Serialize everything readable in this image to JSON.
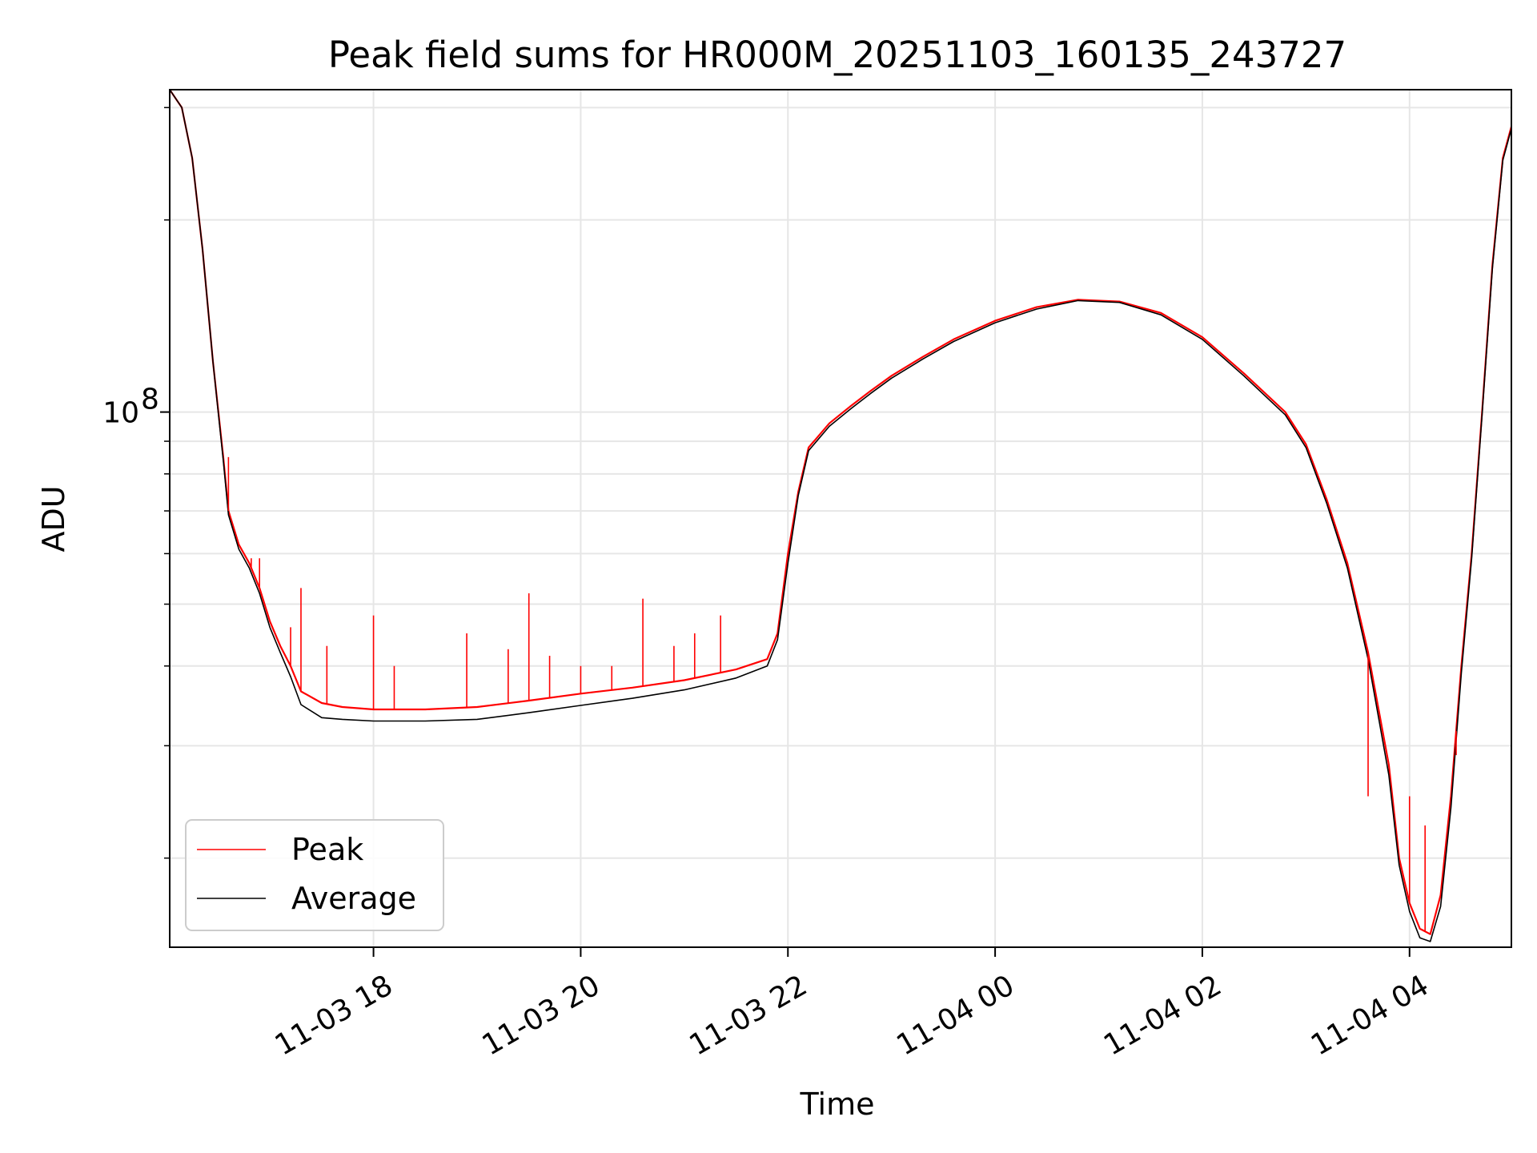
{
  "chart_data": {
    "type": "line",
    "title": "Peak field sums for HR000M_20251103_160135_243727",
    "xlabel": "Time",
    "ylabel": "ADU",
    "y_scale": "log",
    "ylim": [
      14500000,
      320000000
    ],
    "xlim": [
      16.033,
      28.983
    ],
    "x_unit": "hours since 2025-11-03 00:00",
    "x_ticks": [
      {
        "value": 18,
        "label": "11-03 18"
      },
      {
        "value": 20,
        "label": "11-03 20"
      },
      {
        "value": 22,
        "label": "11-03 22"
      },
      {
        "value": 24,
        "label": "11-04 00"
      },
      {
        "value": 26,
        "label": "11-04 02"
      },
      {
        "value": 28,
        "label": "11-04 04"
      }
    ],
    "y_major_tick": {
      "value": 100000000,
      "label_base": "10",
      "label_exp": "8"
    },
    "y_minor_ticks": [
      20000000,
      30000000,
      40000000,
      50000000,
      60000000,
      70000000,
      80000000,
      90000000,
      200000000,
      300000000
    ],
    "grid": true,
    "legend": {
      "position": "lower-left",
      "entries": [
        {
          "name": "Peak",
          "color": "#ff0000"
        },
        {
          "name": "Average",
          "color": "#000000"
        }
      ]
    },
    "series": [
      {
        "name": "Peak",
        "color": "#ff0000",
        "points": [
          [
            16.033,
            320000000
          ],
          [
            16.15,
            300000000
          ],
          [
            16.25,
            250000000
          ],
          [
            16.35,
            180000000
          ],
          [
            16.45,
            120000000
          ],
          [
            16.55,
            85000000
          ],
          [
            16.6,
            70000000
          ],
          [
            16.7,
            62000000
          ],
          [
            16.8,
            58000000
          ],
          [
            16.9,
            53000000
          ],
          [
            17.0,
            47000000
          ],
          [
            17.1,
            43000000
          ],
          [
            17.2,
            40000000
          ],
          [
            17.3,
            36500000
          ],
          [
            17.5,
            35000000
          ],
          [
            17.7,
            34500000
          ],
          [
            18.0,
            34200000
          ],
          [
            18.5,
            34200000
          ],
          [
            19.0,
            34500000
          ],
          [
            19.5,
            35300000
          ],
          [
            20.0,
            36200000
          ],
          [
            20.5,
            37000000
          ],
          [
            21.0,
            38000000
          ],
          [
            21.5,
            39500000
          ],
          [
            21.8,
            41000000
          ],
          [
            21.9,
            45000000
          ],
          [
            22.0,
            60000000
          ],
          [
            22.1,
            75000000
          ],
          [
            22.2,
            88000000
          ],
          [
            22.4,
            96000000
          ],
          [
            22.6,
            102000000
          ],
          [
            22.8,
            108000000
          ],
          [
            23.0,
            114000000
          ],
          [
            23.3,
            122000000
          ],
          [
            23.6,
            130000000
          ],
          [
            24.0,
            139000000
          ],
          [
            24.4,
            146000000
          ],
          [
            24.8,
            150000000
          ],
          [
            25.2,
            149000000
          ],
          [
            25.6,
            143000000
          ],
          [
            26.0,
            131000000
          ],
          [
            26.4,
            115000000
          ],
          [
            26.8,
            100000000
          ],
          [
            27.0,
            89000000
          ],
          [
            27.2,
            73000000
          ],
          [
            27.4,
            58000000
          ],
          [
            27.6,
            42000000
          ],
          [
            27.8,
            28000000
          ],
          [
            27.9,
            20000000
          ],
          [
            28.0,
            17000000
          ],
          [
            28.1,
            15500000
          ],
          [
            28.2,
            15200000
          ],
          [
            28.3,
            17500000
          ],
          [
            28.4,
            25000000
          ],
          [
            28.5,
            40000000
          ],
          [
            28.6,
            60000000
          ],
          [
            28.7,
            100000000
          ],
          [
            28.8,
            170000000
          ],
          [
            28.9,
            250000000
          ],
          [
            28.983,
            280000000
          ]
        ]
      },
      {
        "name": "Average",
        "color": "#000000",
        "points": [
          [
            16.033,
            320000000
          ],
          [
            16.15,
            300000000
          ],
          [
            16.25,
            250000000
          ],
          [
            16.35,
            180000000
          ],
          [
            16.45,
            120000000
          ],
          [
            16.55,
            84000000
          ],
          [
            16.6,
            69000000
          ],
          [
            16.7,
            61000000
          ],
          [
            16.8,
            57000000
          ],
          [
            16.9,
            52000000
          ],
          [
            17.0,
            46000000
          ],
          [
            17.1,
            42000000
          ],
          [
            17.2,
            38500000
          ],
          [
            17.3,
            34800000
          ],
          [
            17.5,
            33200000
          ],
          [
            17.7,
            33000000
          ],
          [
            18.0,
            32800000
          ],
          [
            18.5,
            32800000
          ],
          [
            19.0,
            33000000
          ],
          [
            19.5,
            33800000
          ],
          [
            20.0,
            34700000
          ],
          [
            20.5,
            35600000
          ],
          [
            21.0,
            36700000
          ],
          [
            21.5,
            38300000
          ],
          [
            21.8,
            40000000
          ],
          [
            21.9,
            44000000
          ],
          [
            22.0,
            58000000
          ],
          [
            22.1,
            74000000
          ],
          [
            22.2,
            87000000
          ],
          [
            22.4,
            95000000
          ],
          [
            22.6,
            101000000
          ],
          [
            22.8,
            107000000
          ],
          [
            23.0,
            113000000
          ],
          [
            23.3,
            121000000
          ],
          [
            23.6,
            129000000
          ],
          [
            24.0,
            138000000
          ],
          [
            24.4,
            145000000
          ],
          [
            24.8,
            149500000
          ],
          [
            25.2,
            148500000
          ],
          [
            25.6,
            142000000
          ],
          [
            26.0,
            130000000
          ],
          [
            26.4,
            114000000
          ],
          [
            26.8,
            99000000
          ],
          [
            27.0,
            88000000
          ],
          [
            27.2,
            72000000
          ],
          [
            27.4,
            57000000
          ],
          [
            27.6,
            41000000
          ],
          [
            27.8,
            27000000
          ],
          [
            27.9,
            19500000
          ],
          [
            28.0,
            16500000
          ],
          [
            28.1,
            15000000
          ],
          [
            28.2,
            14800000
          ],
          [
            28.3,
            16800000
          ],
          [
            28.4,
            24000000
          ],
          [
            28.5,
            39000000
          ],
          [
            28.6,
            59000000
          ],
          [
            28.7,
            99000000
          ],
          [
            28.8,
            168000000
          ],
          [
            28.9,
            248000000
          ],
          [
            28.983,
            278000000
          ]
        ]
      }
    ],
    "spikes": {
      "series": "Peak",
      "points": [
        [
          16.6,
          85000000
        ],
        [
          16.75,
          60000000
        ],
        [
          16.82,
          59000000
        ],
        [
          16.9,
          59000000
        ],
        [
          17.2,
          46000000
        ],
        [
          17.3,
          53000000
        ],
        [
          17.55,
          43000000
        ],
        [
          18.0,
          48000000
        ],
        [
          18.2,
          40000000
        ],
        [
          18.9,
          45000000
        ],
        [
          19.3,
          42500000
        ],
        [
          19.5,
          52000000
        ],
        [
          19.7,
          41500000
        ],
        [
          20.0,
          40000000
        ],
        [
          20.3,
          40000000
        ],
        [
          20.6,
          51000000
        ],
        [
          20.9,
          43000000
        ],
        [
          21.1,
          45000000
        ],
        [
          21.35,
          48000000
        ],
        [
          27.6,
          25000000
        ],
        [
          28.0,
          25000000
        ],
        [
          28.15,
          22500000
        ],
        [
          28.35,
          21000000
        ],
        [
          28.45,
          29000000
        ]
      ]
    }
  }
}
